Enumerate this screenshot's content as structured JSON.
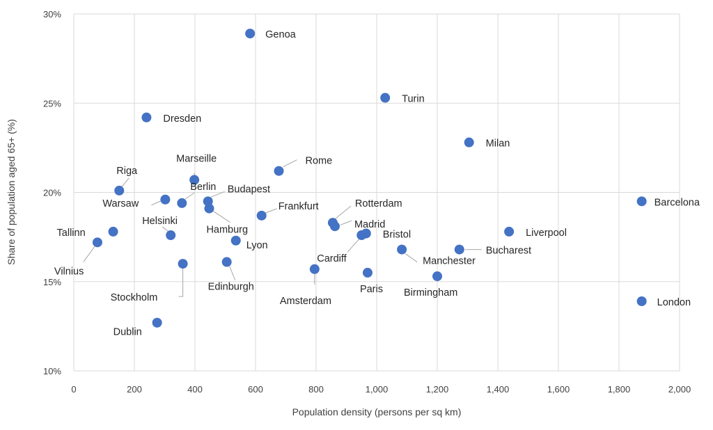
{
  "chart_data": {
    "type": "scatter",
    "title": "",
    "xlabel": "Population density (persons per sq km)",
    "ylabel": "Share of population aged 65+ (%)",
    "xlim": [
      0,
      2000
    ],
    "ylim": [
      10,
      30
    ],
    "x_ticks": [
      0,
      200,
      400,
      600,
      800,
      1000,
      1200,
      1400,
      1600,
      1800,
      2000
    ],
    "x_tick_labels": [
      "0",
      "200",
      "400",
      "600",
      "800",
      "1,000",
      "1,200",
      "1,400",
      "1,600",
      "1,800",
      "2,000"
    ],
    "y_ticks": [
      10,
      15,
      20,
      25,
      30
    ],
    "y_tick_labels": [
      "10%",
      "15%",
      "20%",
      "25%",
      "30%"
    ],
    "grid": true,
    "legend": "none",
    "marker_color": "#4472c4",
    "points": [
      {
        "label": "Genoa",
        "x": 582,
        "y": 28.9
      },
      {
        "label": "Turin",
        "x": 1028,
        "y": 25.3
      },
      {
        "label": "Dresden",
        "x": 240,
        "y": 24.2
      },
      {
        "label": "Milan",
        "x": 1305,
        "y": 22.8
      },
      {
        "label": "Rome",
        "x": 677,
        "y": 21.2
      },
      {
        "label": "Marseille",
        "x": 398,
        "y": 20.7
      },
      {
        "label": "Riga",
        "x": 150,
        "y": 20.1
      },
      {
        "label": "Berlin",
        "x": 357,
        "y": 19.4
      },
      {
        "label": "Warsaw",
        "x": 302,
        "y": 19.6
      },
      {
        "label": "Budapest",
        "x": 443,
        "y": 19.5
      },
      {
        "label": "Barcelona",
        "x": 1875,
        "y": 19.5
      },
      {
        "label": "Hamburg",
        "x": 447,
        "y": 19.1
      },
      {
        "label": "Frankfurt",
        "x": 620,
        "y": 18.7
      },
      {
        "label": "Rotterdam",
        "x": 855,
        "y": 18.3
      },
      {
        "label": "Madrid",
        "x": 862,
        "y": 18.1
      },
      {
        "label": "Tallinn",
        "x": 130,
        "y": 17.8
      },
      {
        "label": "Liverpool",
        "x": 1437,
        "y": 17.8
      },
      {
        "label": "Bristol",
        "x": 965,
        "y": 17.7
      },
      {
        "label": "Cardiff",
        "x": 950,
        "y": 17.6
      },
      {
        "label": "Helsinki",
        "x": 320,
        "y": 17.6
      },
      {
        "label": "Lyon",
        "x": 535,
        "y": 17.3
      },
      {
        "label": "Vilnius",
        "x": 78,
        "y": 17.2
      },
      {
        "label": "Manchester",
        "x": 1083,
        "y": 16.8
      },
      {
        "label": "Bucharest",
        "x": 1273,
        "y": 16.8
      },
      {
        "label": "Edinburgh",
        "x": 505,
        "y": 16.1
      },
      {
        "label": "Stockholm",
        "x": 360,
        "y": 16.0
      },
      {
        "label": "Amsterdam",
        "x": 795,
        "y": 15.7
      },
      {
        "label": "Paris",
        "x": 970,
        "y": 15.5
      },
      {
        "label": "Birmingham",
        "x": 1200,
        "y": 15.3
      },
      {
        "label": "London",
        "x": 1875,
        "y": 13.9
      },
      {
        "label": "Dublin",
        "x": 275,
        "y": 12.7
      }
    ]
  }
}
